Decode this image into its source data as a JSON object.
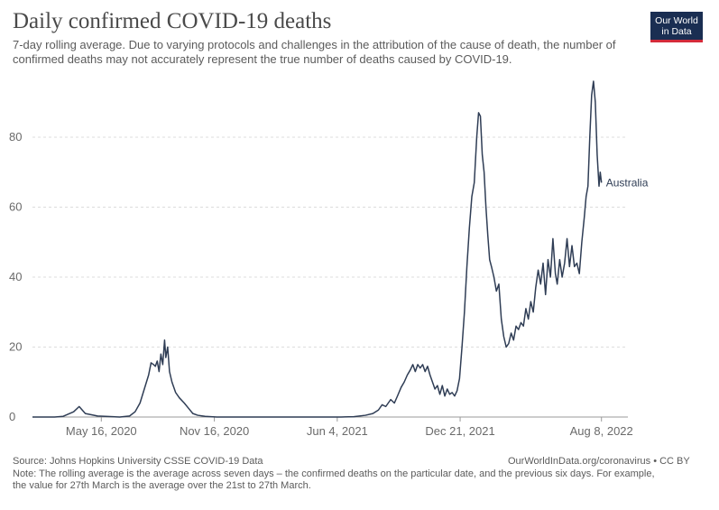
{
  "header": {
    "title": "Daily confirmed COVID-19 deaths",
    "subtitle": "7-day rolling average. Due to varying protocols and challenges in the attribution of the cause of death, the number of confirmed deaths may not accurately represent the true number of deaths caused by COVID-19."
  },
  "logo": {
    "line1": "Our World",
    "line2": "in Data",
    "bg_color": "#1a2e52",
    "accent_color": "#d42b3a"
  },
  "footer": {
    "source": "Source: Johns Hopkins University CSSE COVID-19 Data",
    "credit": "OurWorldInData.org/coronavirus • CC BY",
    "note_line1": "Note: The rolling average is the average across seven days – the confirmed deaths on the particular date, and the previous six days. For example,",
    "note_line2": "the value for 27th March is the average over the 21st to 27th March."
  },
  "chart_data": {
    "type": "line",
    "title": "Daily confirmed COVID-19 deaths",
    "ylim": [
      0,
      96
    ],
    "y_ticks": [
      0,
      20,
      40,
      60,
      80
    ],
    "x_tick_labels": [
      {
        "date": "2020-05-16",
        "label": "May 16, 2020"
      },
      {
        "date": "2020-11-16",
        "label": "Nov 16, 2020"
      },
      {
        "date": "2021-06-04",
        "label": "Jun 4, 2021"
      },
      {
        "date": "2021-12-21",
        "label": "Dec 21, 2021"
      },
      {
        "date": "2022-08-08",
        "label": "Aug 8, 2022"
      }
    ],
    "x_range": [
      "2020-01-25",
      "2022-09-20"
    ],
    "grid": "horizontal dashed",
    "line_color": "#2f3d55",
    "series": [
      {
        "name": "Australia",
        "points": [
          [
            "2020-01-25",
            0
          ],
          [
            "2020-03-01",
            0
          ],
          [
            "2020-03-15",
            0.2
          ],
          [
            "2020-04-01",
            1.5
          ],
          [
            "2020-04-10",
            3
          ],
          [
            "2020-04-20",
            1
          ],
          [
            "2020-05-10",
            0.3
          ],
          [
            "2020-06-15",
            0
          ],
          [
            "2020-07-01",
            0.3
          ],
          [
            "2020-07-10",
            1.5
          ],
          [
            "2020-07-18",
            4
          ],
          [
            "2020-07-25",
            8
          ],
          [
            "2020-08-01",
            12
          ],
          [
            "2020-08-05",
            15.5
          ],
          [
            "2020-08-09",
            15
          ],
          [
            "2020-08-12",
            14.5
          ],
          [
            "2020-08-15",
            16
          ],
          [
            "2020-08-18",
            13
          ],
          [
            "2020-08-21",
            18
          ],
          [
            "2020-08-24",
            15
          ],
          [
            "2020-08-27",
            22
          ],
          [
            "2020-08-29",
            17
          ],
          [
            "2020-09-01",
            20
          ],
          [
            "2020-09-04",
            13
          ],
          [
            "2020-09-08",
            10
          ],
          [
            "2020-09-14",
            7
          ],
          [
            "2020-09-20",
            5.5
          ],
          [
            "2020-09-28",
            4
          ],
          [
            "2020-10-05",
            2.5
          ],
          [
            "2020-10-12",
            1
          ],
          [
            "2020-10-20",
            0.5
          ],
          [
            "2020-11-01",
            0.2
          ],
          [
            "2020-11-20",
            0
          ],
          [
            "2021-01-10",
            0
          ],
          [
            "2021-04-01",
            0
          ],
          [
            "2021-06-10",
            0
          ],
          [
            "2021-07-01",
            0.1
          ],
          [
            "2021-07-20",
            0.5
          ],
          [
            "2021-08-01",
            1
          ],
          [
            "2021-08-10",
            2
          ],
          [
            "2021-08-16",
            3.5
          ],
          [
            "2021-08-22",
            3
          ],
          [
            "2021-08-30",
            5
          ],
          [
            "2021-09-05",
            4
          ],
          [
            "2021-09-10",
            6
          ],
          [
            "2021-09-16",
            8.5
          ],
          [
            "2021-09-21",
            10
          ],
          [
            "2021-09-26",
            12
          ],
          [
            "2021-10-01",
            13.5
          ],
          [
            "2021-10-05",
            15
          ],
          [
            "2021-10-09",
            13
          ],
          [
            "2021-10-13",
            15
          ],
          [
            "2021-10-17",
            14
          ],
          [
            "2021-10-21",
            15
          ],
          [
            "2021-10-25",
            13
          ],
          [
            "2021-10-29",
            14.5
          ],
          [
            "2021-11-02",
            12
          ],
          [
            "2021-11-06",
            10
          ],
          [
            "2021-11-10",
            8
          ],
          [
            "2021-11-14",
            9
          ],
          [
            "2021-11-18",
            6.5
          ],
          [
            "2021-11-22",
            9
          ],
          [
            "2021-11-26",
            6
          ],
          [
            "2021-11-30",
            8
          ],
          [
            "2021-12-04",
            6.5
          ],
          [
            "2021-12-08",
            7
          ],
          [
            "2021-12-12",
            6
          ],
          [
            "2021-12-16",
            7.5
          ],
          [
            "2021-12-20",
            11
          ],
          [
            "2021-12-24",
            20
          ],
          [
            "2021-12-28",
            30
          ],
          [
            "2022-01-01",
            43
          ],
          [
            "2022-01-05",
            54
          ],
          [
            "2022-01-09",
            63
          ],
          [
            "2022-01-13",
            67
          ],
          [
            "2022-01-17",
            80
          ],
          [
            "2022-01-20",
            87
          ],
          [
            "2022-01-23",
            86
          ],
          [
            "2022-01-26",
            75
          ],
          [
            "2022-01-29",
            70
          ],
          [
            "2022-02-01",
            60
          ],
          [
            "2022-02-04",
            52
          ],
          [
            "2022-02-07",
            45
          ],
          [
            "2022-02-10",
            43
          ],
          [
            "2022-02-14",
            40
          ],
          [
            "2022-02-18",
            36
          ],
          [
            "2022-02-22",
            38
          ],
          [
            "2022-02-26",
            28
          ],
          [
            "2022-03-02",
            23
          ],
          [
            "2022-03-06",
            20
          ],
          [
            "2022-03-10",
            21
          ],
          [
            "2022-03-14",
            24
          ],
          [
            "2022-03-18",
            22
          ],
          [
            "2022-03-22",
            26
          ],
          [
            "2022-03-26",
            25
          ],
          [
            "2022-03-30",
            27
          ],
          [
            "2022-04-03",
            26
          ],
          [
            "2022-04-07",
            31
          ],
          [
            "2022-04-11",
            28
          ],
          [
            "2022-04-15",
            33
          ],
          [
            "2022-04-19",
            30
          ],
          [
            "2022-04-23",
            37
          ],
          [
            "2022-04-27",
            42
          ],
          [
            "2022-05-01",
            38
          ],
          [
            "2022-05-05",
            44
          ],
          [
            "2022-05-09",
            35
          ],
          [
            "2022-05-13",
            45
          ],
          [
            "2022-05-17",
            40
          ],
          [
            "2022-05-21",
            51
          ],
          [
            "2022-05-25",
            41
          ],
          [
            "2022-05-28",
            38
          ],
          [
            "2022-06-01",
            45
          ],
          [
            "2022-06-05",
            40
          ],
          [
            "2022-06-09",
            44
          ],
          [
            "2022-06-13",
            51
          ],
          [
            "2022-06-17",
            43
          ],
          [
            "2022-06-21",
            49
          ],
          [
            "2022-06-25",
            43
          ],
          [
            "2022-06-29",
            44
          ],
          [
            "2022-07-03",
            41
          ],
          [
            "2022-07-07",
            50
          ],
          [
            "2022-07-11",
            57
          ],
          [
            "2022-07-14",
            63
          ],
          [
            "2022-07-17",
            66
          ],
          [
            "2022-07-20",
            80
          ],
          [
            "2022-07-23",
            92
          ],
          [
            "2022-07-26",
            96
          ],
          [
            "2022-07-29",
            90
          ],
          [
            "2022-08-01",
            75
          ],
          [
            "2022-08-04",
            66
          ],
          [
            "2022-08-06",
            70
          ],
          [
            "2022-08-08",
            67
          ]
        ]
      }
    ]
  }
}
